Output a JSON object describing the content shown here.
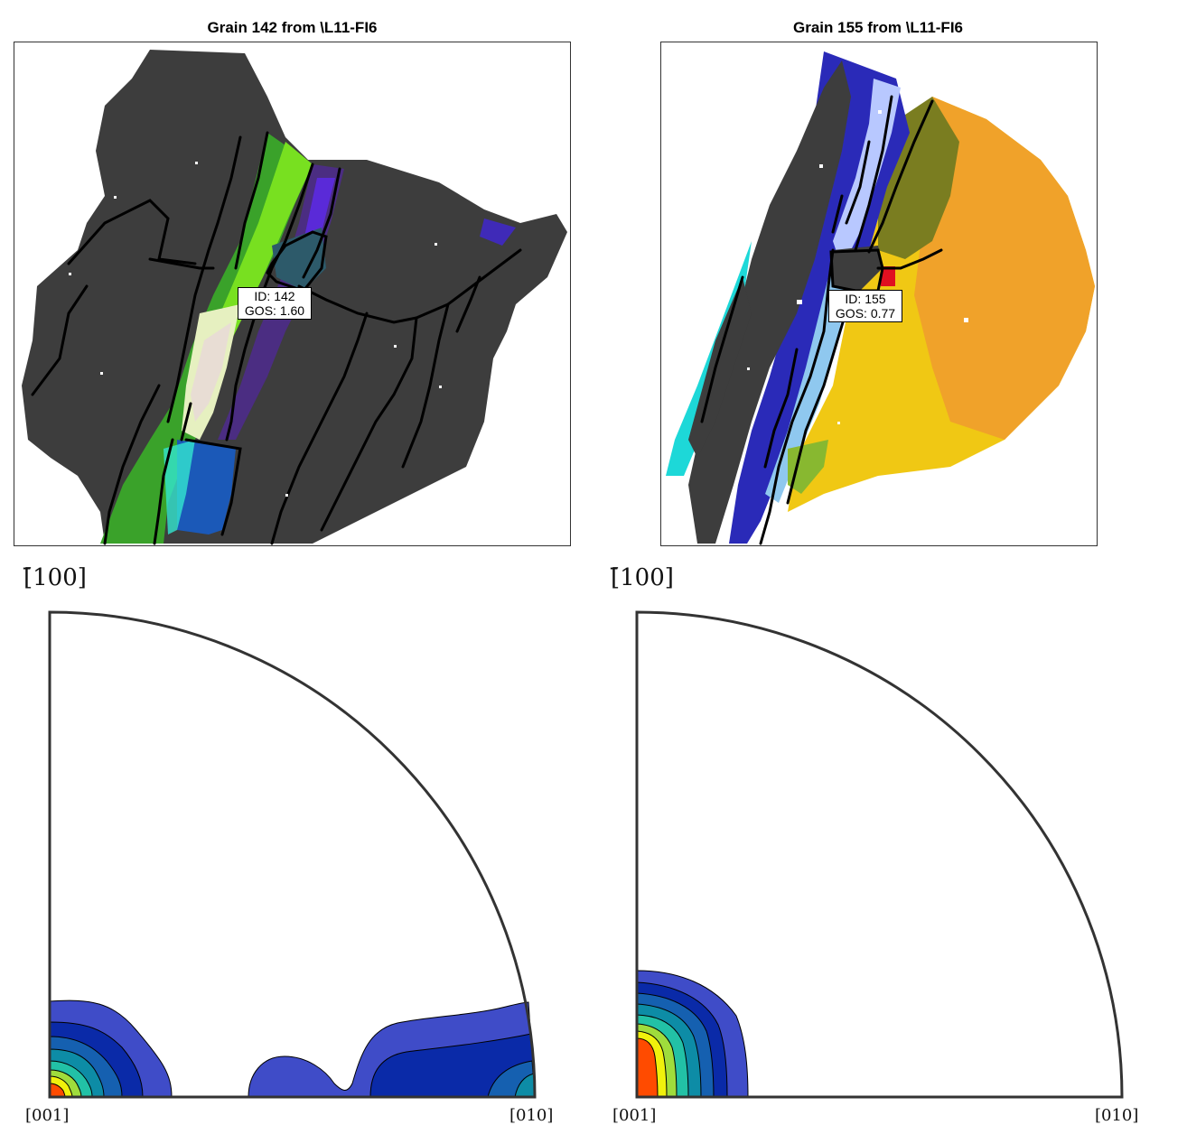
{
  "panels": [
    {
      "title": "Grain 142 from \\L11-FI6",
      "label_lines": [
        "ID: 142",
        "GOS: 1.60"
      ],
      "pole_figure_label": "[̄100]",
      "axis_left": "[001]",
      "axis_right": "[010]"
    },
    {
      "title": "Grain 155 from \\L11-FI6",
      "label_lines": [
        "ID: 155",
        "GOS: 0.77"
      ],
      "pole_figure_label": "[̄100]",
      "axis_left": "[001]",
      "axis_right": "[010]"
    }
  ],
  "colors": {
    "matrix_gray": "#3d3d3d",
    "contour_levels": [
      "#3f4cc8",
      "#0a2aa8",
      "#1560b0",
      "#0d8ca6",
      "#22c1a6",
      "#9fdc3c",
      "#f1f10c",
      "#ff4b00"
    ]
  }
}
